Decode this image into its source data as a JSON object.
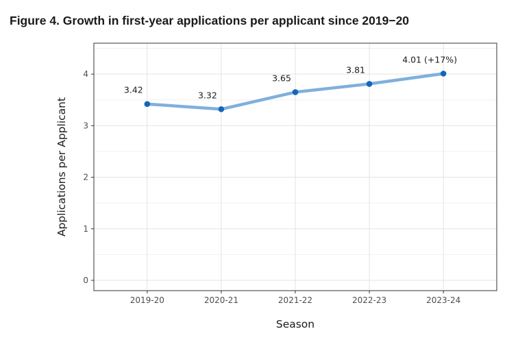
{
  "figure_title": "Figure 4. Growth in first-year applications per applicant since 2019−20",
  "chart_data": {
    "type": "line",
    "categories": [
      "2019-20",
      "2020-21",
      "2021-22",
      "2022-23",
      "2023-24"
    ],
    "series": [
      {
        "values": [
          3.42,
          3.32,
          3.65,
          3.81,
          4.01
        ]
      }
    ],
    "data_labels": [
      "3.42",
      "3.32",
      "3.65",
      "3.81",
      "4.01 (+17%)"
    ],
    "xlabel": "Season",
    "ylabel": "Applications per Applicant",
    "yticks": [
      "0",
      "1",
      "2",
      "3",
      "4"
    ],
    "ylim": [
      -0.2,
      4.6
    ],
    "grid": true,
    "line_color": "#7fb0dc",
    "point_color": "#1465ba"
  }
}
